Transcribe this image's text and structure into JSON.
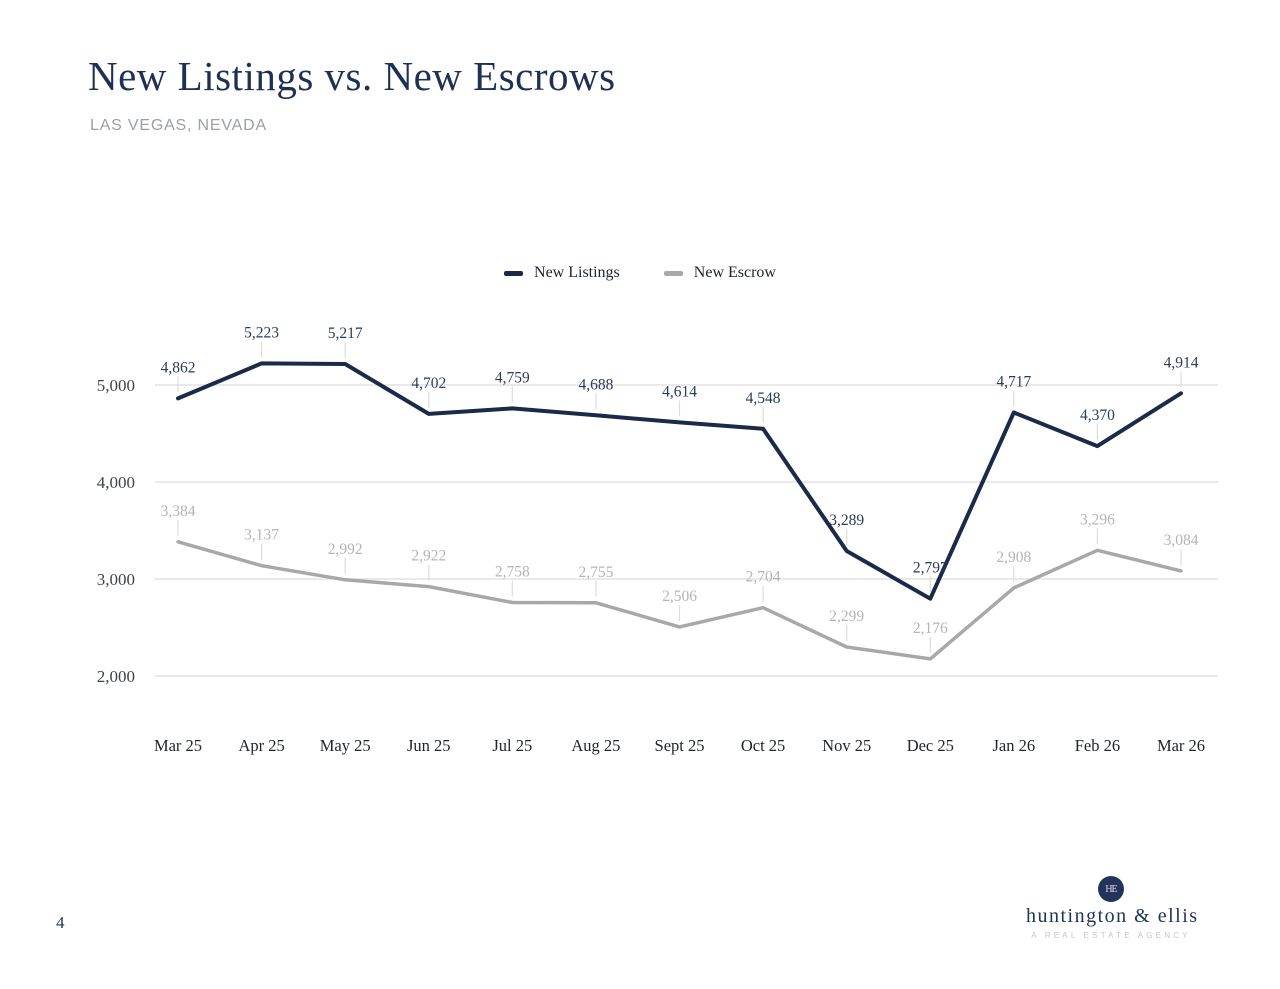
{
  "page": {
    "number": "4"
  },
  "header": {
    "title": "New Listings vs. New Escrows",
    "subtitle": "LAS VEGAS, NEVADA"
  },
  "legend": [
    {
      "label": "New Listings",
      "color": "#1b2a48"
    },
    {
      "label": "New Escrow",
      "color": "#a8a8a8"
    }
  ],
  "chart_data": {
    "type": "line",
    "title": "New Listings vs. New Escrows",
    "categories": [
      "Mar 25",
      "Apr 25",
      "May 25",
      "Jun 25",
      "Jul 25",
      "Aug 25",
      "Sept 25",
      "Oct 25",
      "Nov 25",
      "Dec 25",
      "Jan 26",
      "Feb 26",
      "Mar 26"
    ],
    "series": [
      {
        "name": "New Listings",
        "color": "#1b2a48",
        "label_color": "#2a3a57",
        "line_width": 4,
        "values": [
          4862,
          5223,
          5217,
          4702,
          4759,
          4688,
          4614,
          4548,
          3289,
          2797,
          4717,
          4370,
          4914
        ]
      },
      {
        "name": "New Escrow",
        "color": "#a8a8a8",
        "label_color": "#b4b4b4",
        "line_width": 3.5,
        "values": [
          3384,
          3137,
          2992,
          2922,
          2758,
          2755,
          2506,
          2704,
          2299,
          2176,
          2908,
          3296,
          3084
        ]
      }
    ],
    "ylim": [
      2000,
      5000
    ],
    "yticks": [
      5000,
      4000,
      3000,
      2000
    ],
    "ytick_labels": [
      "5,000",
      "4,000",
      "3,000",
      "2,000"
    ],
    "grid": true,
    "gridline_color": "#dcdcdc",
    "data_labels": true,
    "legend_position": "top-center"
  },
  "logo": {
    "monogram": "HE",
    "name": "huntington & ellis",
    "tagline": "A REAL ESTATE AGENCY"
  }
}
